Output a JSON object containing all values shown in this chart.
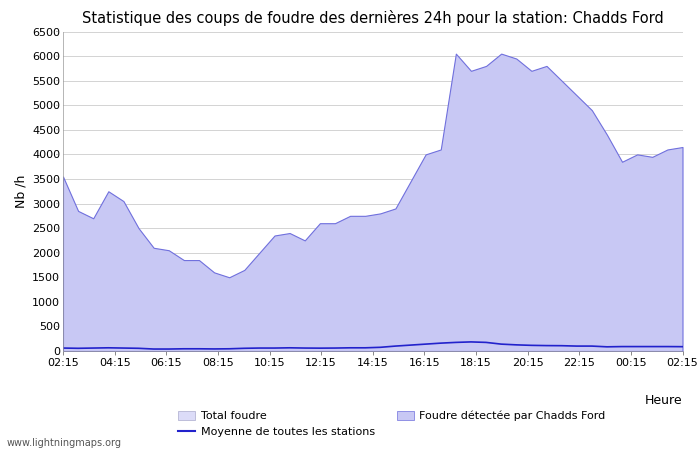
{
  "title": "Statistique des coups de foudre des dernières 24h pour la station: Chadds Ford",
  "ylabel": "Nb /h",
  "xlabel": "Heure",
  "watermark": "www.lightningmaps.org",
  "ylim": [
    0,
    6500
  ],
  "yticks": [
    0,
    500,
    1000,
    1500,
    2000,
    2500,
    3000,
    3500,
    4000,
    4500,
    5000,
    5500,
    6000,
    6500
  ],
  "xtick_labels": [
    "02:15",
    "04:15",
    "06:15",
    "08:15",
    "10:15",
    "12:15",
    "14:15",
    "16:15",
    "18:15",
    "20:15",
    "22:15",
    "00:15",
    "02:15"
  ],
  "color_total": "#dcdcf8",
  "color_detected": "#c8c8f4",
  "color_detected_edge": "#7070dd",
  "color_mean_line": "#2222cc",
  "background_color": "#ffffff",
  "grid_color": "#cccccc",
  "title_fontsize": 10.5,
  "label_fontsize": 9,
  "tick_fontsize": 8,
  "legend_fontsize": 8,
  "total_foudre": [
    3550,
    2850,
    2700,
    3250,
    3050,
    2500,
    2100,
    2050,
    1850,
    1850,
    1600,
    1500,
    1650,
    2000,
    2350,
    2400,
    2250,
    2600,
    2600,
    2750,
    2750,
    2800,
    2900,
    3450,
    4000,
    4100,
    6050,
    5700,
    5800,
    6050,
    5950,
    5700,
    5800,
    5500,
    5200,
    4900,
    4400,
    3850,
    4000,
    3950,
    4100,
    4150
  ],
  "detected_foudre": [
    3550,
    2850,
    2700,
    3250,
    3050,
    2500,
    2100,
    2050,
    1850,
    1850,
    1600,
    1500,
    1650,
    2000,
    2350,
    2400,
    2250,
    2600,
    2600,
    2750,
    2750,
    2800,
    2900,
    3450,
    4000,
    4100,
    6050,
    5700,
    5800,
    6050,
    5950,
    5700,
    5800,
    5500,
    5200,
    4900,
    4400,
    3850,
    4000,
    3950,
    4100,
    4150
  ],
  "mean_line": [
    60,
    55,
    60,
    65,
    60,
    55,
    40,
    40,
    45,
    45,
    42,
    45,
    55,
    60,
    60,
    65,
    60,
    58,
    60,
    65,
    65,
    75,
    100,
    120,
    140,
    160,
    175,
    185,
    175,
    140,
    125,
    115,
    110,
    108,
    100,
    100,
    85,
    90,
    90,
    90,
    90,
    88
  ]
}
